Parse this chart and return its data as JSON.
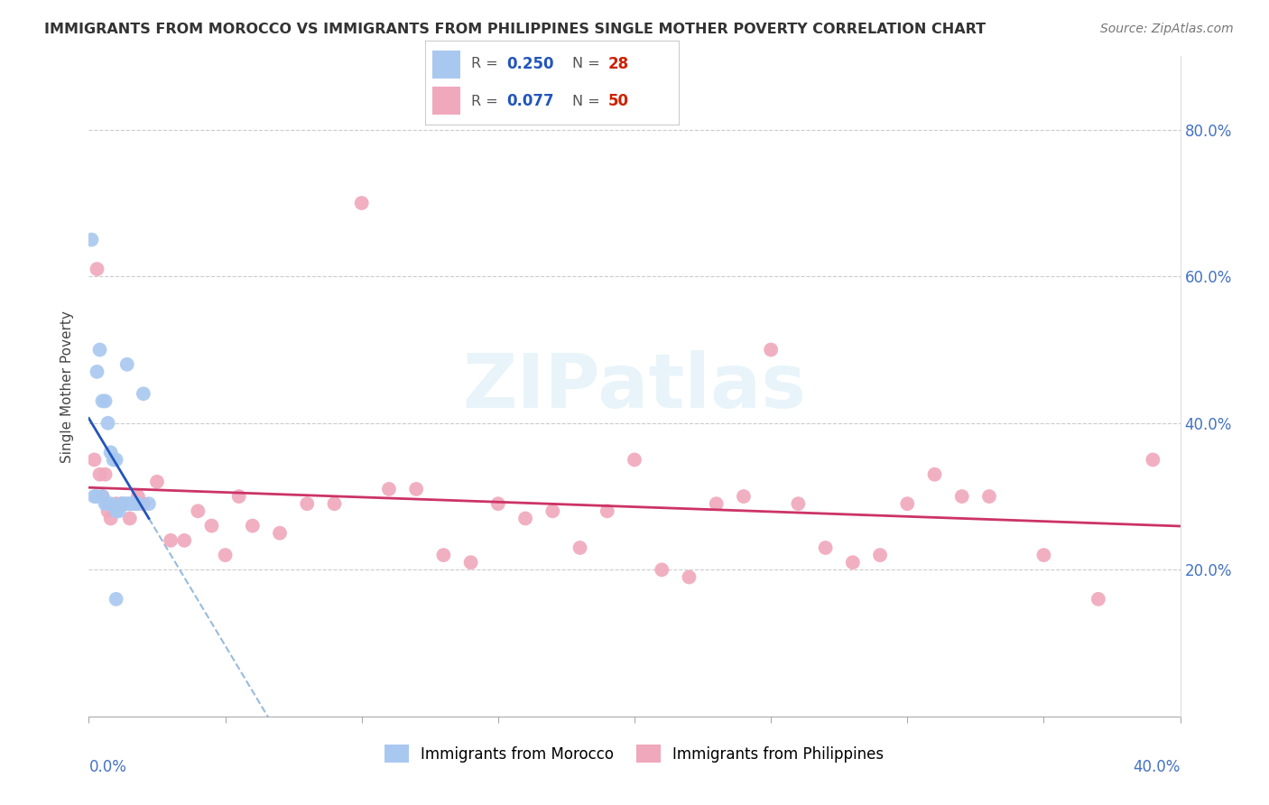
{
  "title": "IMMIGRANTS FROM MOROCCO VS IMMIGRANTS FROM PHILIPPINES SINGLE MOTHER POVERTY CORRELATION CHART",
  "source": "Source: ZipAtlas.com",
  "ylabel": "Single Mother Poverty",
  "y_tick_values": [
    0.2,
    0.4,
    0.6,
    0.8
  ],
  "xlim": [
    0.0,
    0.4
  ],
  "ylim": [
    0.0,
    0.9
  ],
  "morocco_color": "#a8c8f0",
  "morocco_line_color": "#2255bb",
  "morocco_dashed_color": "#99bbdd",
  "morocco_label": "Immigrants from Morocco",
  "morocco_R": 0.25,
  "morocco_N": 28,
  "philippines_color": "#f0a8bc",
  "philippines_line_color": "#cc3366",
  "philippines_label": "Immigrants from Philippines",
  "philippines_R": 0.077,
  "philippines_N": 50,
  "watermark": "ZIPatlas",
  "morocco_x": [
    0.001,
    0.002,
    0.003,
    0.003,
    0.004,
    0.005,
    0.005,
    0.006,
    0.006,
    0.007,
    0.007,
    0.008,
    0.008,
    0.009,
    0.01,
    0.01,
    0.011,
    0.012,
    0.013,
    0.014,
    0.015,
    0.016,
    0.017,
    0.018,
    0.02,
    0.022,
    0.014,
    0.01
  ],
  "morocco_y": [
    0.65,
    0.3,
    0.47,
    0.3,
    0.5,
    0.43,
    0.3,
    0.43,
    0.29,
    0.4,
    0.29,
    0.36,
    0.29,
    0.35,
    0.35,
    0.28,
    0.28,
    0.29,
    0.29,
    0.29,
    0.29,
    0.29,
    0.29,
    0.29,
    0.44,
    0.29,
    0.48,
    0.16
  ],
  "philippines_x": [
    0.002,
    0.003,
    0.004,
    0.005,
    0.006,
    0.007,
    0.008,
    0.01,
    0.012,
    0.015,
    0.018,
    0.02,
    0.025,
    0.03,
    0.035,
    0.04,
    0.045,
    0.05,
    0.055,
    0.06,
    0.07,
    0.08,
    0.09,
    0.1,
    0.11,
    0.12,
    0.13,
    0.14,
    0.15,
    0.16,
    0.17,
    0.18,
    0.19,
    0.2,
    0.21,
    0.22,
    0.23,
    0.24,
    0.25,
    0.26,
    0.27,
    0.28,
    0.29,
    0.3,
    0.31,
    0.32,
    0.33,
    0.35,
    0.37,
    0.39
  ],
  "philippines_y": [
    0.35,
    0.61,
    0.33,
    0.3,
    0.33,
    0.28,
    0.27,
    0.29,
    0.29,
    0.27,
    0.3,
    0.29,
    0.32,
    0.24,
    0.24,
    0.28,
    0.26,
    0.22,
    0.3,
    0.26,
    0.25,
    0.29,
    0.29,
    0.7,
    0.31,
    0.31,
    0.22,
    0.21,
    0.29,
    0.27,
    0.28,
    0.23,
    0.28,
    0.35,
    0.2,
    0.19,
    0.29,
    0.3,
    0.5,
    0.29,
    0.23,
    0.21,
    0.22,
    0.29,
    0.33,
    0.3,
    0.3,
    0.22,
    0.16,
    0.35
  ]
}
